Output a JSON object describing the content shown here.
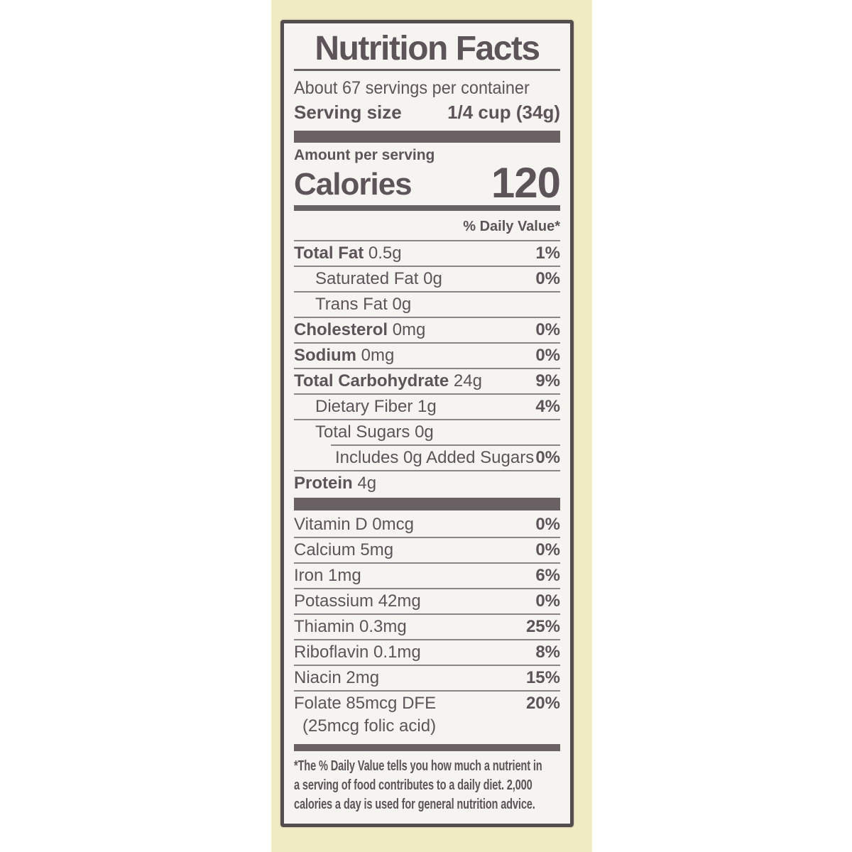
{
  "colors": {
    "page_bg": "#ffffff",
    "cream": "#f0ebc3",
    "label_bg": "#f6f4f0",
    "border": "#544d50",
    "ink": "#5c5458",
    "bar": "#6a6165",
    "rule": "#8b8388"
  },
  "label": {
    "title": "Nutrition Facts",
    "servings_per_container": "About 67 servings per container",
    "serving_size_label": "Serving size",
    "serving_size_value": "1/4 cup (34g)",
    "amount_per_serving": "Amount per serving",
    "calories_label": "Calories",
    "calories_value": "120",
    "daily_value_header": "% Daily Value*",
    "nutrients": [
      {
        "name": "Total Fat",
        "amount": "0.5g",
        "dv": "1%",
        "bold": true,
        "indent": 0
      },
      {
        "name": "Saturated Fat",
        "amount": "0g",
        "dv": "0%",
        "bold": false,
        "indent": 1
      },
      {
        "name": "Trans Fat",
        "amount": "0g",
        "dv": "",
        "bold": false,
        "indent": 1
      },
      {
        "name": "Cholesterol",
        "amount": "0mg",
        "dv": "0%",
        "bold": true,
        "indent": 0
      },
      {
        "name": "Sodium",
        "amount": "0mg",
        "dv": "0%",
        "bold": true,
        "indent": 0
      },
      {
        "name": "Total Carbohydrate",
        "amount": "24g",
        "dv": "9%",
        "bold": true,
        "indent": 0
      },
      {
        "name": "Dietary Fiber",
        "amount": "1g",
        "dv": "4%",
        "bold": false,
        "indent": 1
      },
      {
        "name": "Total Sugars",
        "amount": "0g",
        "dv": "",
        "bold": false,
        "indent": 1
      },
      {
        "name": "Includes 0g Added Sugars",
        "amount": "",
        "dv": "0%",
        "bold": false,
        "indent": 2,
        "rule_indent": true
      },
      {
        "name": "Protein",
        "amount": "4g",
        "dv": "",
        "bold": true,
        "indent": 0
      }
    ],
    "micronutrients": [
      {
        "name": "Vitamin D 0mcg",
        "dv": "0%"
      },
      {
        "name": "Calcium 5mg",
        "dv": "0%"
      },
      {
        "name": "Iron 1mg",
        "dv": "6%"
      },
      {
        "name": "Potassium 42mg",
        "dv": "0%"
      },
      {
        "name": "Thiamin 0.3mg",
        "dv": "25%"
      },
      {
        "name": "Riboflavin 0.1mg",
        "dv": "8%"
      },
      {
        "name": "Niacin 2mg",
        "dv": "15%"
      },
      {
        "name": "Folate 85mcg DFE",
        "dv": "20%",
        "note": "(25mcg folic acid)"
      }
    ],
    "footnote_lines": [
      "*The % Daily Value tells you how much a nutrient in",
      "a serving of food contributes to a daily diet. 2,000",
      "calories a day is used for general nutrition advice."
    ]
  }
}
